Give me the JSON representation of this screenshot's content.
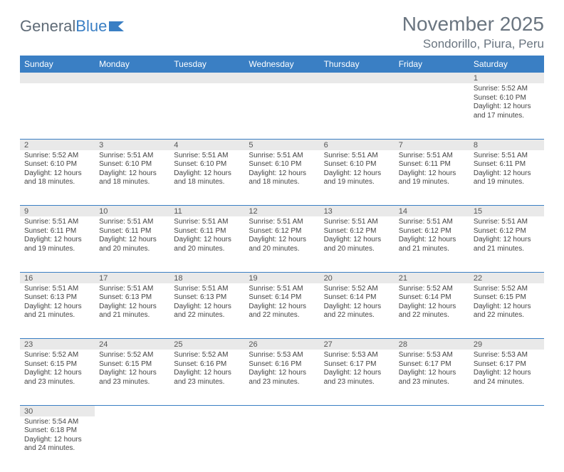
{
  "logo": {
    "text1": "General",
    "text2": "Blue"
  },
  "title": "November 2025",
  "location": "Sondorillo, Piura, Peru",
  "colors": {
    "header_bg": "#3a7fc4",
    "header_text": "#ffffff",
    "daynum_bg": "#e9e9e9",
    "border": "#3a7fc4",
    "title_color": "#6a7580"
  },
  "day_labels": [
    "Sunday",
    "Monday",
    "Tuesday",
    "Wednesday",
    "Thursday",
    "Friday",
    "Saturday"
  ],
  "weeks": [
    [
      null,
      null,
      null,
      null,
      null,
      null,
      {
        "n": "1",
        "sr": "5:52 AM",
        "ss": "6:10 PM",
        "dl": "12 hours and 17 minutes."
      }
    ],
    [
      {
        "n": "2",
        "sr": "5:52 AM",
        "ss": "6:10 PM",
        "dl": "12 hours and 18 minutes."
      },
      {
        "n": "3",
        "sr": "5:51 AM",
        "ss": "6:10 PM",
        "dl": "12 hours and 18 minutes."
      },
      {
        "n": "4",
        "sr": "5:51 AM",
        "ss": "6:10 PM",
        "dl": "12 hours and 18 minutes."
      },
      {
        "n": "5",
        "sr": "5:51 AM",
        "ss": "6:10 PM",
        "dl": "12 hours and 18 minutes."
      },
      {
        "n": "6",
        "sr": "5:51 AM",
        "ss": "6:10 PM",
        "dl": "12 hours and 19 minutes."
      },
      {
        "n": "7",
        "sr": "5:51 AM",
        "ss": "6:11 PM",
        "dl": "12 hours and 19 minutes."
      },
      {
        "n": "8",
        "sr": "5:51 AM",
        "ss": "6:11 PM",
        "dl": "12 hours and 19 minutes."
      }
    ],
    [
      {
        "n": "9",
        "sr": "5:51 AM",
        "ss": "6:11 PM",
        "dl": "12 hours and 19 minutes."
      },
      {
        "n": "10",
        "sr": "5:51 AM",
        "ss": "6:11 PM",
        "dl": "12 hours and 20 minutes."
      },
      {
        "n": "11",
        "sr": "5:51 AM",
        "ss": "6:11 PM",
        "dl": "12 hours and 20 minutes."
      },
      {
        "n": "12",
        "sr": "5:51 AM",
        "ss": "6:12 PM",
        "dl": "12 hours and 20 minutes."
      },
      {
        "n": "13",
        "sr": "5:51 AM",
        "ss": "6:12 PM",
        "dl": "12 hours and 20 minutes."
      },
      {
        "n": "14",
        "sr": "5:51 AM",
        "ss": "6:12 PM",
        "dl": "12 hours and 21 minutes."
      },
      {
        "n": "15",
        "sr": "5:51 AM",
        "ss": "6:12 PM",
        "dl": "12 hours and 21 minutes."
      }
    ],
    [
      {
        "n": "16",
        "sr": "5:51 AM",
        "ss": "6:13 PM",
        "dl": "12 hours and 21 minutes."
      },
      {
        "n": "17",
        "sr": "5:51 AM",
        "ss": "6:13 PM",
        "dl": "12 hours and 21 minutes."
      },
      {
        "n": "18",
        "sr": "5:51 AM",
        "ss": "6:13 PM",
        "dl": "12 hours and 22 minutes."
      },
      {
        "n": "19",
        "sr": "5:51 AM",
        "ss": "6:14 PM",
        "dl": "12 hours and 22 minutes."
      },
      {
        "n": "20",
        "sr": "5:52 AM",
        "ss": "6:14 PM",
        "dl": "12 hours and 22 minutes."
      },
      {
        "n": "21",
        "sr": "5:52 AM",
        "ss": "6:14 PM",
        "dl": "12 hours and 22 minutes."
      },
      {
        "n": "22",
        "sr": "5:52 AM",
        "ss": "6:15 PM",
        "dl": "12 hours and 22 minutes."
      }
    ],
    [
      {
        "n": "23",
        "sr": "5:52 AM",
        "ss": "6:15 PM",
        "dl": "12 hours and 23 minutes."
      },
      {
        "n": "24",
        "sr": "5:52 AM",
        "ss": "6:15 PM",
        "dl": "12 hours and 23 minutes."
      },
      {
        "n": "25",
        "sr": "5:52 AM",
        "ss": "6:16 PM",
        "dl": "12 hours and 23 minutes."
      },
      {
        "n": "26",
        "sr": "5:53 AM",
        "ss": "6:16 PM",
        "dl": "12 hours and 23 minutes."
      },
      {
        "n": "27",
        "sr": "5:53 AM",
        "ss": "6:17 PM",
        "dl": "12 hours and 23 minutes."
      },
      {
        "n": "28",
        "sr": "5:53 AM",
        "ss": "6:17 PM",
        "dl": "12 hours and 23 minutes."
      },
      {
        "n": "29",
        "sr": "5:53 AM",
        "ss": "6:17 PM",
        "dl": "12 hours and 24 minutes."
      }
    ],
    [
      {
        "n": "30",
        "sr": "5:54 AM",
        "ss": "6:18 PM",
        "dl": "12 hours and 24 minutes."
      },
      null,
      null,
      null,
      null,
      null,
      null
    ]
  ],
  "labels": {
    "sunrise": "Sunrise: ",
    "sunset": "Sunset: ",
    "daylight": "Daylight: "
  }
}
